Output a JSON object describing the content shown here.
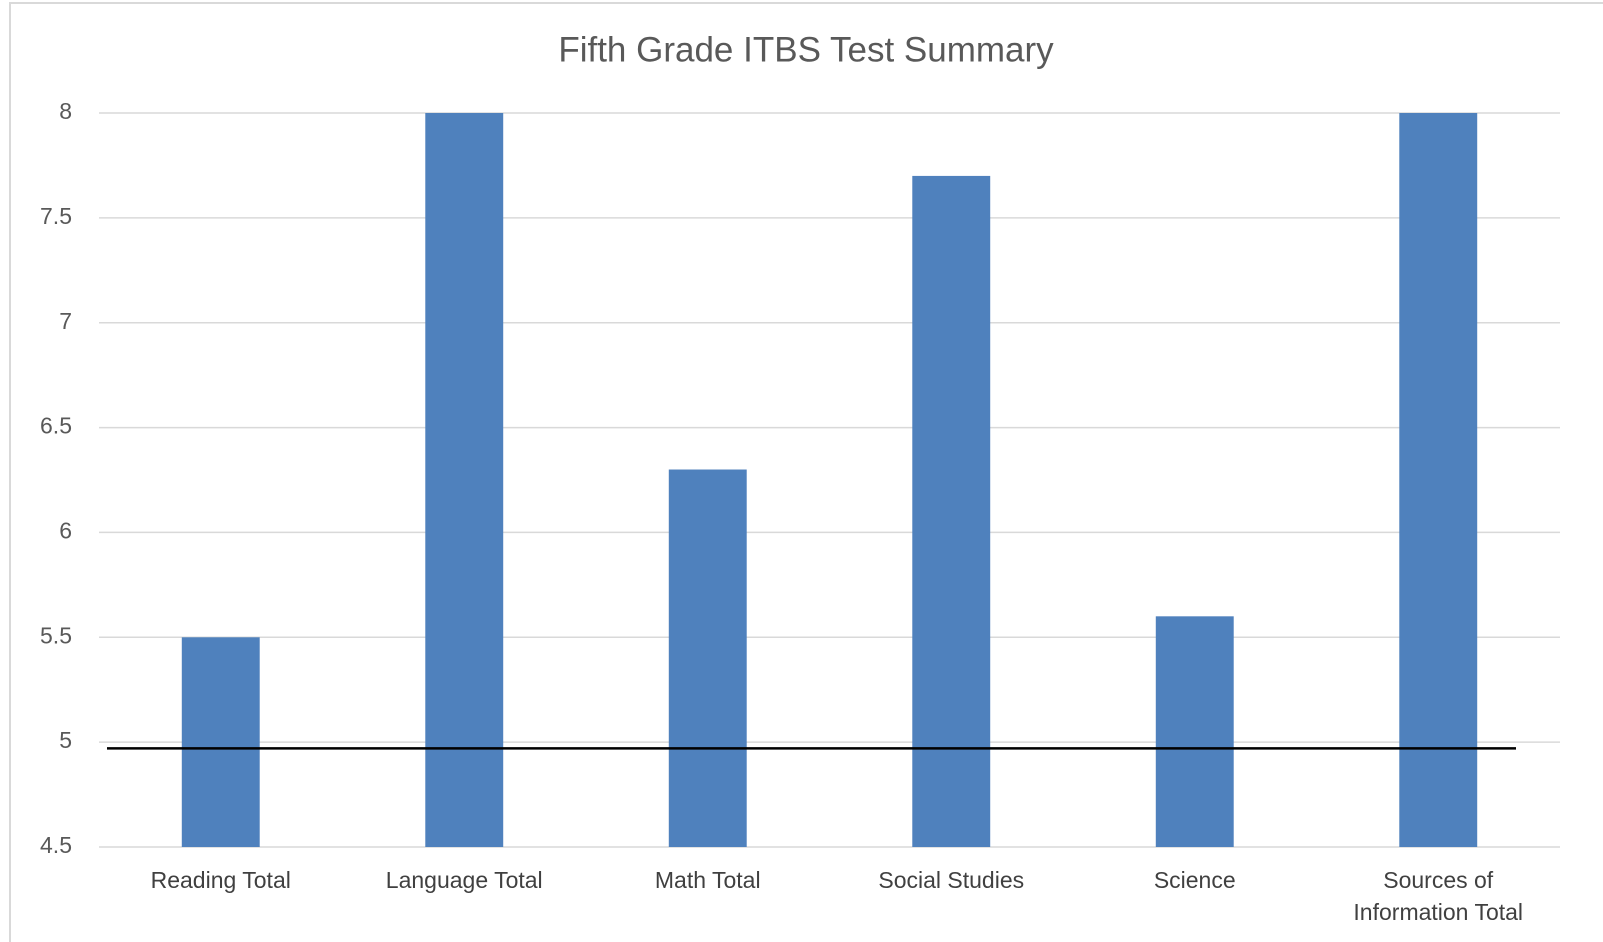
{
  "chart_data": {
    "type": "bar",
    "title": "Fifth Grade ITBS Test Summary",
    "categories": [
      "Reading Total",
      "Language Total",
      "Math Total",
      "Social Studies",
      "Science",
      "Sources of Information Total"
    ],
    "values": [
      5.5,
      8,
      6.3,
      7.7,
      5.6,
      8
    ],
    "color": "#4f81bd",
    "ylim": [
      4.5,
      8
    ],
    "yticks": [
      4.5,
      5,
      5.5,
      6,
      6.5,
      7,
      7.5,
      8
    ],
    "grid": true,
    "reference_line": 4.97
  }
}
